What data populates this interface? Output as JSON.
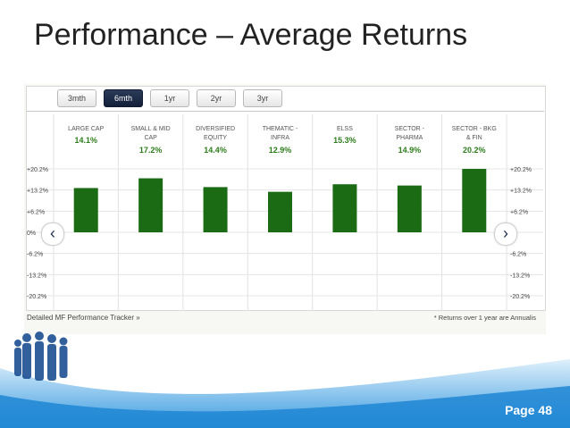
{
  "slide": {
    "title": "Performance – Average Returns",
    "page_label": "Page 48"
  },
  "tabs": [
    {
      "label": "3mth",
      "active": false
    },
    {
      "label": "6mth",
      "active": true
    },
    {
      "label": "1yr",
      "active": false
    },
    {
      "label": "2yr",
      "active": false
    },
    {
      "label": "3yr",
      "active": false
    }
  ],
  "footer": {
    "link": "Detailed MF Performance Tracker »",
    "note": "* Returns over 1 year are Annualis"
  },
  "colors": {
    "bar": "#1a6b14",
    "value_text": "#2e7d1c",
    "category_text": "#555555",
    "wave_blue": "#2a8fd6"
  },
  "icons": {
    "left": "chevron-left-icon",
    "right": "chevron-right-icon"
  },
  "chart_data": {
    "type": "bar",
    "categories": [
      [
        "LARGE CAP"
      ],
      [
        "SMALL & MID",
        "CAP"
      ],
      [
        "DIVERSIFIED",
        "EQUITY"
      ],
      [
        "THEMATIC -",
        "INFRA"
      ],
      [
        "ELSS"
      ],
      [
        "SECTOR -",
        "PHARMA"
      ],
      [
        "SECTOR - BKG",
        "& FIN"
      ]
    ],
    "value_labels": [
      "14.1%",
      "17.2%",
      "14.4%",
      "12.9%",
      "15.3%",
      "14.9%",
      "20.2%"
    ],
    "values": [
      14.1,
      17.2,
      14.4,
      12.9,
      15.3,
      14.9,
      20.2
    ],
    "ylim": [
      -20.2,
      20.2
    ],
    "yticks_left": [
      "+20.2%",
      "+13.2%",
      "+6.2%",
      "0%",
      "-6.2%",
      "-13.2%",
      "-20.2%"
    ],
    "yticks_right": [
      "+20.2%",
      "+13.2%",
      "+6.2%",
      "%",
      "-6.2%",
      "-13.2%",
      "-20.2%"
    ],
    "grid": true,
    "title": "",
    "xlabel": "",
    "ylabel": ""
  }
}
